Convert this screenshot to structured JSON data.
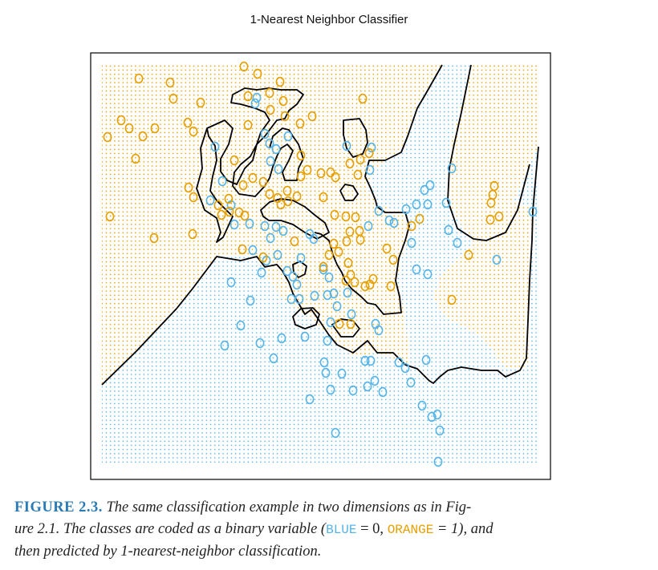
{
  "figure": {
    "title": "1-Nearest Neighbor Classifier",
    "caption": {
      "label": "FIGURE 2.3.",
      "text_1": "The same classification example in two dimensions as in Fig-",
      "text_2a": "ure 2.1. The classes are coded as a binary variable (",
      "blue_word": "BLUE",
      "eq_0": " = 0, ",
      "orange_word": "ORANGE",
      "eq_1": " = 1), and",
      "text_3": "then predicted by 1-nearest-neighbor classification."
    }
  },
  "colors": {
    "blue": "#56b4e9",
    "orange": "#e69f00",
    "boundary": "#000000"
  },
  "chart_data": {
    "type": "scatter",
    "title": "1-Nearest Neighbor Classifier",
    "xlabel": "",
    "ylabel": "",
    "grid": false,
    "legend": "none",
    "marker": "open circle",
    "series": [
      {
        "name": "BLUE",
        "color": "#56b4e9",
        "points": [
          [
            268,
            183
          ],
          [
            277,
            226
          ],
          [
            262,
            250
          ],
          [
            288,
            256
          ],
          [
            292,
            280
          ],
          [
            311,
            279
          ],
          [
            330,
            282
          ],
          [
            344,
            283
          ],
          [
            353,
            288
          ],
          [
            337,
            297
          ],
          [
            315,
            312
          ],
          [
            332,
            325
          ],
          [
            346,
            318
          ],
          [
            326,
            340
          ],
          [
            358,
            338
          ],
          [
            365,
            345
          ],
          [
            370,
            355
          ],
          [
            375,
            322
          ],
          [
            386,
            292
          ],
          [
            391,
            298
          ],
          [
            403,
            336
          ],
          [
            410,
            346
          ],
          [
            363,
            373
          ],
          [
            373,
            373
          ],
          [
            392,
            369
          ],
          [
            408,
            368
          ],
          [
            416,
            366
          ],
          [
            433,
            365
          ],
          [
            420,
            382
          ],
          [
            438,
            392
          ],
          [
            412,
            402
          ],
          [
            380,
            420
          ],
          [
            408,
            425
          ],
          [
            351,
            422
          ],
          [
            324,
            428
          ],
          [
            280,
            431
          ],
          [
            300,
            406
          ],
          [
            312,
            375
          ],
          [
            288,
            352
          ],
          [
            341,
            447
          ],
          [
            404,
            452
          ],
          [
            406,
            465
          ],
          [
            426,
            466
          ],
          [
            412,
            486
          ],
          [
            440,
            487
          ],
          [
            458,
            482
          ],
          [
            467,
            475
          ],
          [
            477,
            489
          ],
          [
            455,
            450
          ],
          [
            462,
            450
          ],
          [
            472,
            412
          ],
          [
            468,
            404
          ],
          [
            497,
            452
          ],
          [
            505,
            459
          ],
          [
            512,
            477
          ],
          [
            531,
            449
          ],
          [
            526,
            506
          ],
          [
            538,
            520
          ],
          [
            545,
            517
          ],
          [
            548,
            537
          ],
          [
            546,
            576
          ],
          [
            418,
            540
          ],
          [
            386,
            498
          ],
          [
            513,
            303
          ],
          [
            519,
            336
          ],
          [
            506,
            261
          ],
          [
            519,
            255
          ],
          [
            533,
            255
          ],
          [
            556,
            253
          ],
          [
            559,
            287
          ],
          [
            570,
            303
          ],
          [
            529,
            237
          ],
          [
            536,
            231
          ],
          [
            472,
            263
          ],
          [
            485,
            275
          ],
          [
            459,
            282
          ],
          [
            461,
            212
          ],
          [
            432,
            182
          ],
          [
            463,
            184
          ],
          [
            344,
            186
          ],
          [
            359,
            170
          ],
          [
            336,
            179
          ],
          [
            337,
            201
          ],
          [
            347,
            211
          ],
          [
            330,
            167
          ],
          [
            320,
            122
          ],
          [
            318,
            129
          ],
          [
            619,
            324
          ],
          [
            664,
            264
          ],
          [
            563,
            210
          ],
          [
            491,
            278
          ],
          [
            533,
            342
          ]
        ]
      },
      {
        "name": "ORANGE",
        "color": "#e69f00",
        "points": [
          [
            304,
            83
          ],
          [
            321,
            92
          ],
          [
            173,
            98
          ],
          [
            212,
            103
          ],
          [
            216,
            123
          ],
          [
            250,
            128
          ],
          [
            349,
            102
          ],
          [
            353,
            126
          ],
          [
            309,
            120
          ],
          [
            336,
            116
          ],
          [
            337,
            137
          ],
          [
            355,
            145
          ],
          [
            374,
            154
          ],
          [
            389,
            145
          ],
          [
            452,
            123
          ],
          [
            134,
            171
          ],
          [
            151,
            150
          ],
          [
            161,
            160
          ],
          [
            178,
            170
          ],
          [
            193,
            160
          ],
          [
            234,
            153
          ],
          [
            241,
            164
          ],
          [
            169,
            198
          ],
          [
            137,
            270
          ],
          [
            192,
            297
          ],
          [
            240,
            292
          ],
          [
            235,
            234
          ],
          [
            241,
            246
          ],
          [
            272,
            256
          ],
          [
            276,
            268
          ],
          [
            286,
            264
          ],
          [
            298,
            265
          ],
          [
            305,
            269
          ],
          [
            285,
            248
          ],
          [
            303,
            231
          ],
          [
            315,
            222
          ],
          [
            328,
            227
          ],
          [
            336,
            242
          ],
          [
            346,
            247
          ],
          [
            350,
            255
          ],
          [
            359,
            251
          ],
          [
            370,
            245
          ],
          [
            358,
            238
          ],
          [
            403,
            246
          ],
          [
            375,
            194
          ],
          [
            383,
            212
          ],
          [
            400,
            216
          ],
          [
            412,
            215
          ],
          [
            418,
            221
          ],
          [
            436,
            204
          ],
          [
            449,
            199
          ],
          [
            446,
            218
          ],
          [
            460,
            191
          ],
          [
            417,
            268
          ],
          [
            431,
            270
          ],
          [
            443,
            271
          ],
          [
            448,
            288
          ],
          [
            436,
            289
          ],
          [
            432,
            301
          ],
          [
            449,
            299
          ],
          [
            416,
            304
          ],
          [
            422,
            314
          ],
          [
            410,
            318
          ],
          [
            434,
            328
          ],
          [
            437,
            343
          ],
          [
            431,
            350
          ],
          [
            442,
            352
          ],
          [
            455,
            357
          ],
          [
            461,
            355
          ],
          [
            465,
            348
          ],
          [
            487,
            357
          ],
          [
            490,
            324
          ],
          [
            482,
            310
          ],
          [
            513,
            282
          ],
          [
            523,
            273
          ],
          [
            584,
            318
          ],
          [
            563,
            374
          ],
          [
            616,
            232
          ],
          [
            614,
            243
          ],
          [
            612,
            253
          ],
          [
            622,
            270
          ],
          [
            611,
            274
          ],
          [
            302,
            311
          ],
          [
            328,
            321
          ],
          [
            367,
            301
          ],
          [
            375,
            220
          ],
          [
            423,
            404
          ],
          [
            437,
            404
          ],
          [
            403,
            333
          ],
          [
            309,
            156
          ],
          [
            292,
            200
          ]
        ]
      }
    ]
  }
}
